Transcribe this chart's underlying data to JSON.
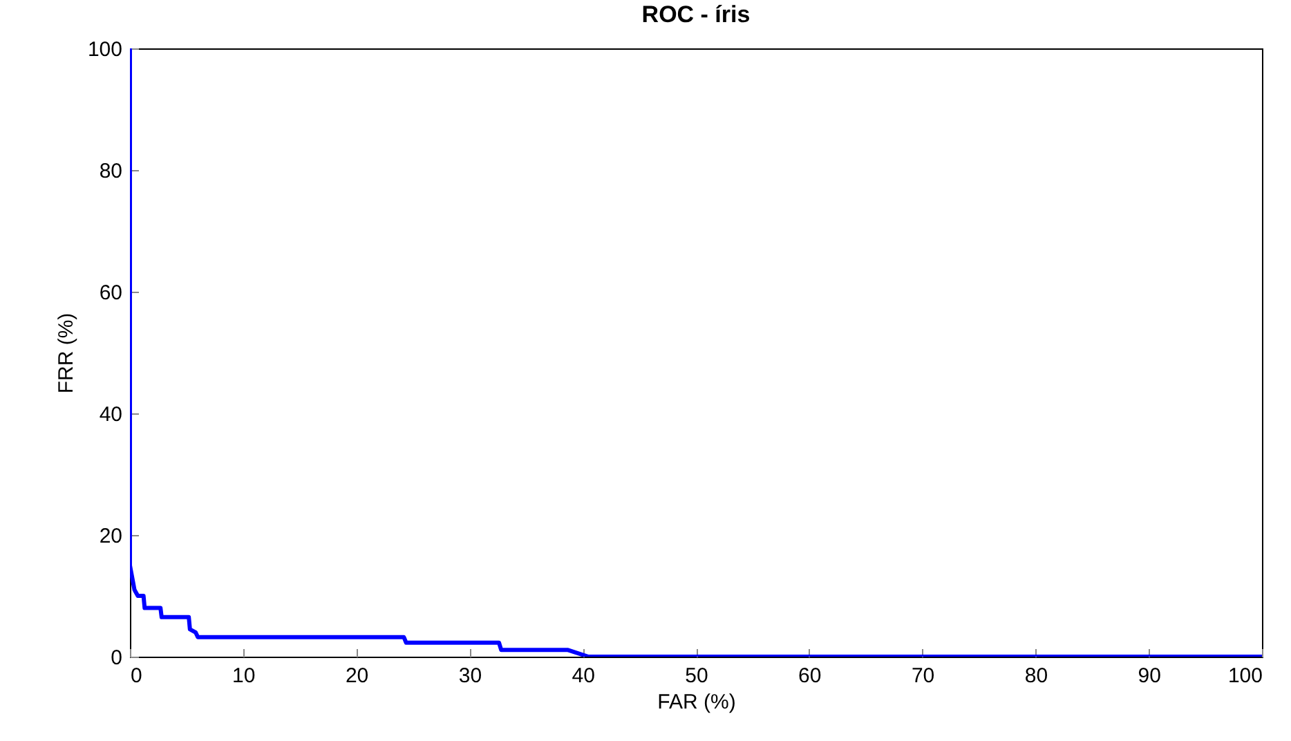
{
  "chart_data": {
    "type": "line",
    "title": "ROC - íris",
    "xlabel": "FAR (%)",
    "ylabel": "FRR (%)",
    "x": [
      0,
      0,
      0.3,
      0.4,
      0.7,
      1.2,
      1.3,
      2.7,
      2.8,
      5.2,
      5.3,
      5.8,
      6,
      24.2,
      24.4,
      32.6,
      32.8,
      38.7,
      40.5,
      100
    ],
    "series": [
      {
        "color": "#0000ff",
        "values": [
          100,
          15,
          12,
          11,
          10,
          10,
          8,
          8,
          6.5,
          6.5,
          4.5,
          4,
          3.2,
          3.2,
          2.3,
          2.3,
          1.1,
          1.1,
          0,
          0
        ]
      }
    ],
    "xlim": [
      0,
      100
    ],
    "xticks": [
      0,
      10,
      20,
      30,
      40,
      50,
      60,
      70,
      80,
      90,
      100
    ],
    "ylim": [
      0,
      100
    ],
    "yticks": [
      0,
      20,
      40,
      60,
      80,
      100
    ],
    "grid": false,
    "legend": false,
    "marker": "none",
    "line_style": "solid"
  }
}
